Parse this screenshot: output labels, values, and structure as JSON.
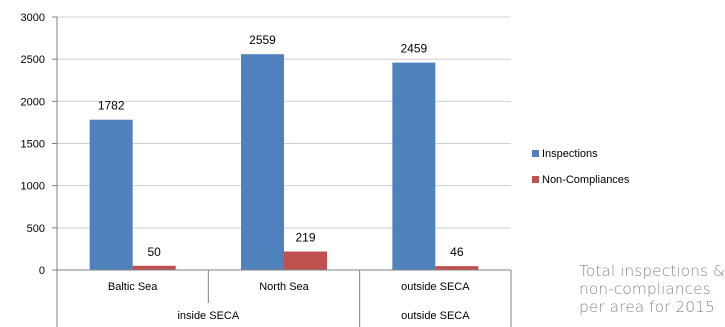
{
  "chart_data": {
    "type": "bar",
    "categories": [
      "Baltic Sea",
      "North Sea",
      "outside SECA"
    ],
    "groups": [
      {
        "label": "inside SECA",
        "categories": [
          "Baltic Sea",
          "North Sea"
        ]
      },
      {
        "label": "outside SECA",
        "categories": [
          "outside SECA"
        ]
      }
    ],
    "series": [
      {
        "name": "Inspections",
        "values": [
          1782,
          2559,
          2459
        ],
        "color": "#4f81bd"
      },
      {
        "name": "Non-Compliances",
        "values": [
          50,
          219,
          46
        ],
        "color": "#c0504d"
      }
    ],
    "yticks": [
      0,
      500,
      1000,
      1500,
      2000,
      2500,
      3000
    ],
    "ylim": [
      0,
      3000
    ],
    "legend": "right",
    "grid": true
  },
  "caption": {
    "lines": [
      "Total inspections &",
      "non-compliances",
      "per area for 2015"
    ]
  }
}
